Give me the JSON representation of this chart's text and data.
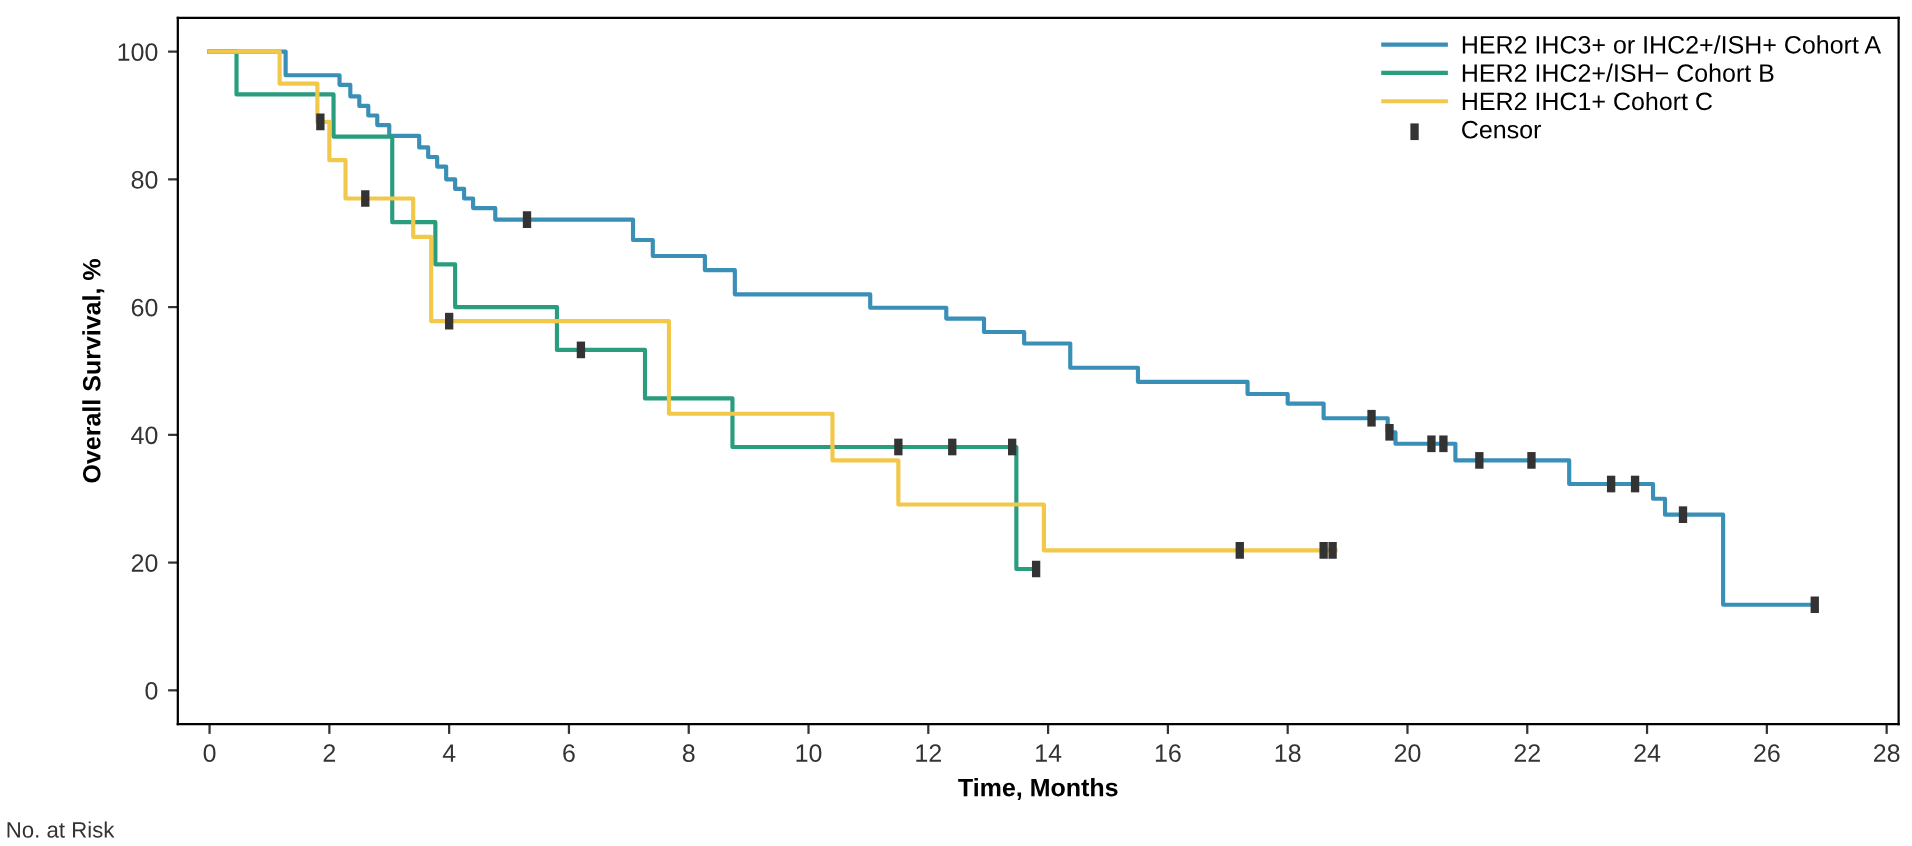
{
  "chart_data": {
    "type": "step",
    "xlabel": "Time, Months",
    "ylabel": "Overall Survival, %",
    "xlim": [
      -0.53,
      28.2
    ],
    "ylim": [
      -5.3,
      105.3
    ],
    "xticks": [
      0,
      2,
      4,
      6,
      8,
      10,
      12,
      14,
      16,
      18,
      20,
      22,
      24,
      26,
      28
    ],
    "yticks": [
      0,
      20,
      40,
      60,
      80,
      100
    ],
    "grid": false,
    "legend": "top right",
    "line_style": "solid",
    "annotations": [
      "No. at Risk"
    ],
    "series": [
      {
        "name": "HER2 IHC3+ or IHC2+/ISH+ Cohort A",
        "color": "#3a8fb7",
        "x": [
          0,
          1.27,
          2.17,
          2.35,
          2.5,
          2.65,
          2.8,
          3.0,
          3.5,
          3.65,
          3.8,
          3.95,
          4.1,
          4.25,
          4.4,
          4.77,
          7.07,
          7.4,
          8.27,
          8.77,
          11.03,
          12.3,
          12.93,
          13.6,
          14.37,
          15.5,
          17.33,
          18.0,
          18.6,
          19.67,
          19.8,
          20.8,
          22.7,
          24.1,
          24.3,
          25.27,
          26.8
        ],
        "values": [
          100,
          96.3,
          94.8,
          93,
          91.5,
          90,
          88.5,
          86.8,
          85,
          83.5,
          82,
          80,
          78.5,
          77,
          75.5,
          73.7,
          70.5,
          68,
          65.8,
          62,
          59.9,
          58.2,
          56.1,
          54.3,
          50.5,
          48.3,
          46.4,
          44.9,
          42.6,
          40.4,
          38.6,
          36,
          32.3,
          30,
          27.5,
          13.4,
          13.4
        ]
      },
      {
        "name": "HER2 IHC2+/ISH− Cohort B",
        "color": "#2a9d7f",
        "x": [
          0,
          0.45,
          2.07,
          3.05,
          3.77,
          4.1,
          5.8,
          7.27,
          8.73,
          13.47,
          13.8
        ],
        "values": [
          100,
          93.3,
          86.7,
          73.3,
          66.7,
          60,
          53.3,
          45.7,
          38.1,
          19,
          19
        ]
      },
      {
        "name": "HER2 IHC1+ Cohort C",
        "color": "#f2c84b",
        "x": [
          0,
          1.17,
          1.8,
          2.0,
          2.27,
          3.4,
          3.7,
          7.67,
          10.4,
          11.5,
          13.93,
          18.8
        ],
        "values": [
          100,
          95,
          89,
          83,
          77,
          71,
          57.8,
          43.3,
          36,
          29.1,
          21.9,
          21.9
        ]
      },
      {
        "name": "Censor",
        "type": "scatter",
        "color": "#333333",
        "x": [
          5.3,
          19.4,
          19.7,
          20.4,
          20.6,
          21.2,
          22.07,
          23.4,
          23.8,
          24.6,
          26.8,
          6.2,
          11.5,
          12.4,
          13.4,
          13.8,
          1.85,
          2.6,
          4.0,
          17.2,
          18.6,
          18.75
        ],
        "values": [
          73.7,
          42.6,
          40.4,
          38.6,
          38.6,
          36,
          36,
          32.3,
          32.3,
          27.5,
          13.4,
          53.3,
          38.1,
          38.1,
          38.1,
          19,
          89,
          77,
          57.8,
          21.9,
          21.9,
          21.9
        ]
      }
    ]
  }
}
